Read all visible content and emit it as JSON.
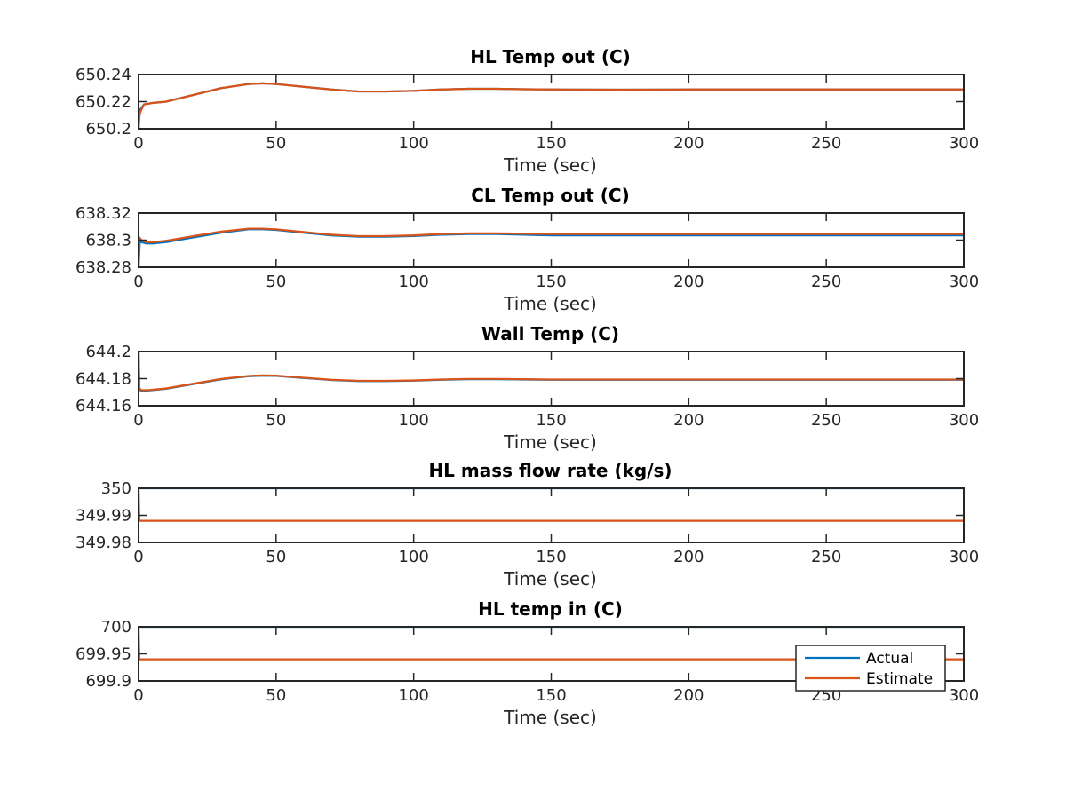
{
  "chart_data": [
    {
      "type": "line",
      "title": "HL Temp out (C)",
      "xlabel": "Time (sec)",
      "ylabel": "",
      "xlim": [
        0,
        300
      ],
      "ylim": [
        650.2,
        650.24
      ],
      "xticks": [
        0,
        50,
        100,
        150,
        200,
        250,
        300
      ],
      "xtick_labels": [
        "0",
        "50",
        "100",
        "150",
        "200",
        "250",
        "300"
      ],
      "yticks": [
        650.2,
        650.22,
        650.24
      ],
      "ytick_labels": [
        "650.2",
        "650.22",
        "650.24"
      ],
      "series": [
        {
          "name": "Actual",
          "color": "#0072BD",
          "x": [
            0,
            0.5,
            2,
            5,
            10,
            20,
            30,
            40,
            45,
            50,
            60,
            70,
            80,
            90,
            100,
            110,
            120,
            130,
            140,
            150,
            175,
            200,
            250,
            300
          ],
          "y": [
            650.2,
            650.214,
            650.218,
            650.219,
            650.22,
            650.225,
            650.23,
            650.233,
            650.2335,
            650.233,
            650.231,
            650.229,
            650.2275,
            650.2275,
            650.228,
            650.229,
            650.2295,
            650.2295,
            650.2292,
            650.229,
            650.2289,
            650.229,
            650.229,
            650.229
          ]
        },
        {
          "name": "Estimate",
          "color": "#D95319",
          "x": [
            0,
            0.3,
            1,
            2,
            5,
            10,
            20,
            30,
            40,
            45,
            50,
            60,
            70,
            80,
            90,
            100,
            110,
            120,
            130,
            140,
            150,
            175,
            200,
            250,
            300
          ],
          "y": [
            650.2,
            650.21,
            650.214,
            650.218,
            650.219,
            650.22,
            650.225,
            650.23,
            650.233,
            650.2335,
            650.233,
            650.231,
            650.229,
            650.2275,
            650.2275,
            650.228,
            650.229,
            650.2295,
            650.2295,
            650.2292,
            650.229,
            650.2289,
            650.229,
            650.229,
            650.229
          ]
        }
      ]
    },
    {
      "type": "line",
      "title": "CL Temp out (C)",
      "xlabel": "Time (sec)",
      "ylabel": "",
      "xlim": [
        0,
        300
      ],
      "ylim": [
        638.28,
        638.32
      ],
      "xticks": [
        0,
        50,
        100,
        150,
        200,
        250,
        300
      ],
      "xtick_labels": [
        "0",
        "50",
        "100",
        "150",
        "200",
        "250",
        "300"
      ],
      "yticks": [
        638.28,
        638.3,
        638.32
      ],
      "ytick_labels": [
        "638.28",
        "638.3",
        "638.32"
      ],
      "series": [
        {
          "name": "Actual",
          "color": "#0072BD",
          "x": [
            0,
            0.5,
            1,
            3,
            5,
            10,
            20,
            30,
            40,
            45,
            50,
            60,
            70,
            80,
            90,
            100,
            110,
            120,
            130,
            150,
            200,
            250,
            300
          ],
          "y": [
            638.28,
            638.3,
            638.2985,
            638.2975,
            638.2975,
            638.2985,
            638.302,
            638.3055,
            638.308,
            638.308,
            638.3075,
            638.3055,
            638.3035,
            638.3025,
            638.3025,
            638.303,
            638.304,
            638.3045,
            638.3045,
            638.3035,
            638.3035,
            638.3035,
            638.3035
          ]
        },
        {
          "name": "Estimate",
          "color": "#D95319",
          "x": [
            0,
            0.3,
            1,
            3,
            5,
            10,
            20,
            30,
            40,
            45,
            50,
            60,
            70,
            80,
            90,
            100,
            110,
            120,
            130,
            150,
            200,
            250,
            300
          ],
          "y": [
            638.28,
            638.302,
            638.3,
            638.2985,
            638.2985,
            638.2995,
            638.303,
            638.3063,
            638.3085,
            638.3085,
            638.308,
            638.306,
            638.304,
            638.303,
            638.303,
            638.3035,
            638.3045,
            638.305,
            638.305,
            638.3045,
            638.3045,
            638.3045,
            638.3045
          ]
        }
      ]
    },
    {
      "type": "line",
      "title": "Wall Temp (C)",
      "xlabel": "Time (sec)",
      "ylabel": "",
      "xlim": [
        0,
        300
      ],
      "ylim": [
        644.16,
        644.2
      ],
      "xticks": [
        0,
        50,
        100,
        150,
        200,
        250,
        300
      ],
      "xtick_labels": [
        "0",
        "50",
        "100",
        "150",
        "200",
        "250",
        "300"
      ],
      "yticks": [
        644.16,
        644.18,
        644.2
      ],
      "ytick_labels": [
        "644.16",
        "644.18",
        "644.2"
      ],
      "series": [
        {
          "name": "Actual",
          "color": "#0072BD",
          "x": [
            0,
            0.3,
            1,
            3,
            5,
            10,
            20,
            30,
            40,
            45,
            50,
            60,
            70,
            80,
            90,
            100,
            110,
            120,
            130,
            150,
            200,
            250,
            300
          ],
          "y": [
            644.2,
            644.172,
            644.171,
            644.1712,
            644.1715,
            644.1725,
            644.176,
            644.1795,
            644.1818,
            644.1822,
            644.182,
            644.1805,
            644.179,
            644.1782,
            644.1782,
            644.1785,
            644.1792,
            644.1796,
            644.1796,
            644.1792,
            644.1792,
            644.1792,
            644.1792
          ]
        },
        {
          "name": "Estimate",
          "color": "#D95319",
          "x": [
            0,
            0.3,
            1,
            3,
            5,
            10,
            20,
            30,
            40,
            45,
            50,
            60,
            70,
            80,
            90,
            100,
            110,
            120,
            130,
            150,
            200,
            250,
            300
          ],
          "y": [
            644.2,
            644.173,
            644.1715,
            644.1715,
            644.1718,
            644.1728,
            644.1763,
            644.1798,
            644.182,
            644.1824,
            644.1822,
            644.1807,
            644.1792,
            644.1784,
            644.1784,
            644.1787,
            644.1794,
            644.1798,
            644.1798,
            644.1794,
            644.1794,
            644.1794,
            644.1794
          ]
        }
      ]
    },
    {
      "type": "line",
      "title": "HL mass flow rate (kg/s)",
      "xlabel": "Time (sec)",
      "ylabel": "",
      "xlim": [
        0,
        300
      ],
      "ylim": [
        349.98,
        350
      ],
      "xticks": [
        0,
        50,
        100,
        150,
        200,
        250,
        300
      ],
      "xtick_labels": [
        "0",
        "50",
        "100",
        "150",
        "200",
        "250",
        "300"
      ],
      "yticks": [
        349.98,
        349.99,
        350
      ],
      "ytick_labels": [
        "349.98",
        "349.99",
        "350"
      ],
      "series": [
        {
          "name": "Actual",
          "color": "#0072BD",
          "x": [
            0,
            300
          ],
          "y": [
            350,
            350
          ]
        },
        {
          "name": "Estimate",
          "color": "#D95319",
          "x": [
            0,
            0.3,
            300
          ],
          "y": [
            350,
            349.988,
            349.988
          ]
        }
      ]
    },
    {
      "type": "line",
      "title": "HL temp in (C)",
      "xlabel": "Time (sec)",
      "ylabel": "",
      "xlim": [
        0,
        300
      ],
      "ylim": [
        699.9,
        700
      ],
      "xticks": [
        0,
        50,
        100,
        150,
        200,
        250,
        300
      ],
      "xtick_labels": [
        "0",
        "50",
        "100",
        "150",
        "200",
        "250",
        "300"
      ],
      "yticks": [
        699.9,
        699.95,
        700
      ],
      "ytick_labels": [
        "699.9",
        "699.95",
        "700"
      ],
      "legend": {
        "entries": [
          "Actual",
          "Estimate"
        ],
        "location": "bottom-right"
      },
      "series": [
        {
          "name": "Actual",
          "color": "#0072BD",
          "x": [
            0,
            300
          ],
          "y": [
            700,
            700
          ]
        },
        {
          "name": "Estimate",
          "color": "#D95319",
          "x": [
            0,
            0.3,
            300
          ],
          "y": [
            700,
            699.94,
            699.94
          ]
        }
      ]
    }
  ]
}
